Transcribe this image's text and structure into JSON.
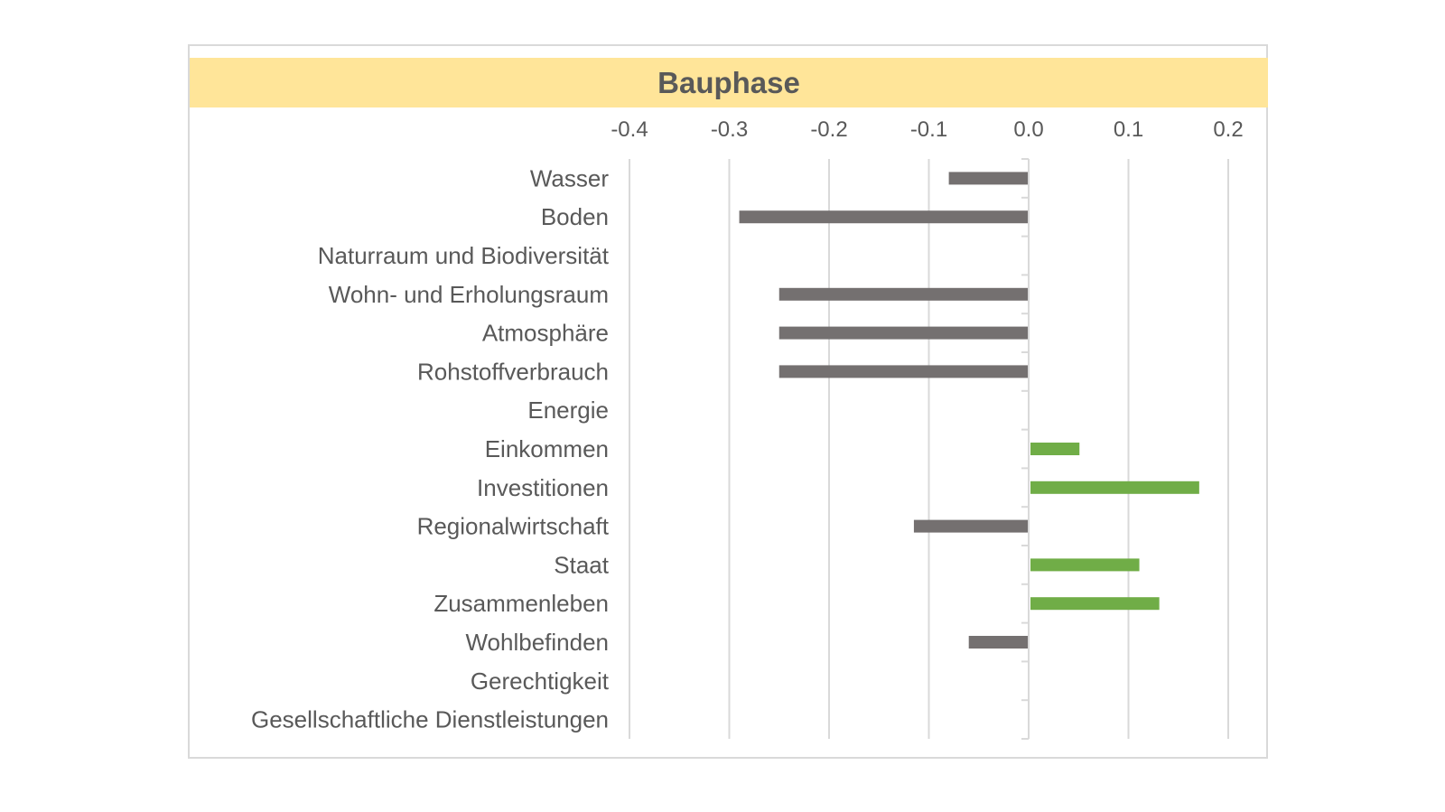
{
  "chart_data": {
    "type": "bar",
    "orientation": "horizontal",
    "title": "Bauphase",
    "xlabel": "",
    "ylabel": "",
    "xlim": [
      -0.4,
      0.2
    ],
    "x_ticks": [
      "-0.4",
      "-0.3",
      "-0.2",
      "-0.1",
      "0.0",
      "0.1",
      "0.2"
    ],
    "x_tick_values": [
      -0.4,
      -0.3,
      -0.2,
      -0.1,
      0.0,
      0.1,
      0.2
    ],
    "x_axis_position": "top",
    "grid": true,
    "categories": [
      "Wasser",
      "Boden",
      "Naturraum und Biodiversität",
      "Wohn- und Erholungsraum",
      "Atmosphäre",
      "Rohstoffverbrauch",
      "Energie",
      "Einkommen",
      "Investitionen",
      "Regionalwirtschaft",
      "Staat",
      "Zusammenleben",
      "Wohlbefinden",
      "Gerechtigkeit",
      "Gesellschaftliche Dienstleistungen"
    ],
    "values": [
      -0.08,
      -0.29,
      0,
      -0.25,
      -0.25,
      -0.25,
      0,
      0.05,
      0.17,
      -0.115,
      0.11,
      0.13,
      -0.06,
      0,
      0
    ],
    "colors": {
      "negative": "#747070",
      "positive": "#70ad47",
      "title_band": "#ffe599",
      "grid": "#d9d9d9",
      "text": "#595959"
    }
  }
}
